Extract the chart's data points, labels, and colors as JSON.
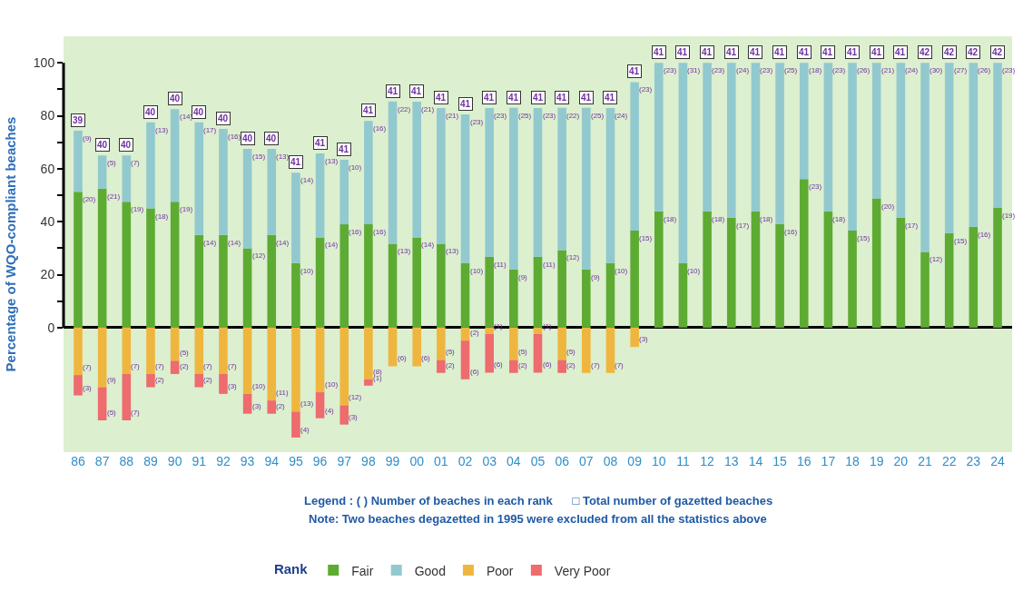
{
  "chart_data": {
    "type": "bar",
    "stacked": true,
    "categories": [
      "86",
      "87",
      "88",
      "89",
      "90",
      "91",
      "92",
      "93",
      "94",
      "95",
      "96",
      "97",
      "98",
      "99",
      "00",
      "01",
      "02",
      "03",
      "04",
      "05",
      "06",
      "07",
      "08",
      "09",
      "10",
      "11",
      "12",
      "13",
      "14",
      "15",
      "16",
      "17",
      "18",
      "19",
      "20",
      "21",
      "22",
      "23",
      "24"
    ],
    "ylabel": "Percentage of WQO-compliant beaches",
    "ylim": [
      -47,
      110
    ],
    "yticks": [
      0,
      {
        "value": 10,
        "label": null
      },
      20,
      {
        "value": 30,
        "label": null
      },
      40,
      {
        "value": 50,
        "label": null
      },
      60,
      {
        "value": 70,
        "label": null
      },
      80,
      {
        "value": 90,
        "label": null
      },
      100
    ],
    "legend": "bottom",
    "legend_title": "Rank",
    "series": [
      {
        "name": "Fair",
        "color": "#5dab32",
        "values": [
          51.3,
          52.5,
          47.5,
          45,
          47.5,
          35,
          35,
          30,
          35,
          24.4,
          34.1,
          39.0,
          39.0,
          31.7,
          34.1,
          31.7,
          24.4,
          26.8,
          22.0,
          26.8,
          29.3,
          22.0,
          24.4,
          36.6,
          43.9,
          24.4,
          43.9,
          41.5,
          43.9,
          39.0,
          56.1,
          43.9,
          36.6,
          48.8,
          41.5,
          28.6,
          35.7,
          38.1,
          45.2
        ]
      },
      {
        "name": "Good",
        "color": "#92c9cf",
        "values": [
          23.1,
          12.5,
          17.5,
          32.5,
          35,
          42.5,
          40,
          37.5,
          32.5,
          34.1,
          31.7,
          24.4,
          39.0,
          53.7,
          51.2,
          51.2,
          56.1,
          56.1,
          61.0,
          56.1,
          53.7,
          61.0,
          58.5,
          56.1,
          56.1,
          75.6,
          56.1,
          58.5,
          56.1,
          61.0,
          43.9,
          56.1,
          63.4,
          51.2,
          58.5,
          71.4,
          64.3,
          61.9,
          54.8
        ]
      },
      {
        "name": "Poor",
        "color": "#efb63f",
        "values": [
          -17.9,
          -22.5,
          -17.5,
          -17.5,
          -12.5,
          -17.5,
          -17.5,
          -25,
          -27.5,
          -31.7,
          -24.4,
          -29.3,
          -19.5,
          -14.6,
          -14.6,
          -12.2,
          -4.9,
          -2.4,
          -12.2,
          -2.4,
          -12.2,
          -17.1,
          -17.1,
          -7.3,
          null,
          null,
          null,
          null,
          null,
          null,
          null,
          null,
          null,
          null,
          null,
          null,
          null,
          null,
          null
        ]
      },
      {
        "name": "Very Poor",
        "color": "#ee6b6e",
        "values": [
          -7.7,
          -12.5,
          -17.5,
          -5,
          -5,
          -5,
          -7.5,
          -7.5,
          -5,
          -9.8,
          -9.8,
          -7.3,
          -2.4,
          null,
          null,
          -4.9,
          -14.6,
          -14.6,
          -4.9,
          -14.6,
          -4.9,
          null,
          null,
          null,
          null,
          null,
          null,
          null,
          null,
          null,
          null,
          null,
          null,
          null,
          null,
          null,
          null,
          null,
          null
        ]
      }
    ],
    "annotations": [
      "Legend : ( ) Number of beaches in each rank      □ Total number of gazetted beaches",
      "Note: Two beaches degazetted in 1995 were excluded from all the statistics above",
      {
        "text": "39",
        "x": "86",
        "y": 74.4
      },
      {
        "text": "40",
        "x": "87",
        "y": 65
      },
      {
        "text": "40",
        "x": "88",
        "y": 65
      },
      {
        "text": "40",
        "x": "89",
        "y": 77.5
      },
      {
        "text": "40",
        "x": "90",
        "y": 82.5
      },
      {
        "text": "40",
        "x": "91",
        "y": 77.5
      },
      {
        "text": "40",
        "x": "92",
        "y": 75
      },
      {
        "text": "40",
        "x": "93",
        "y": 67.5
      },
      {
        "text": "40",
        "x": "94",
        "y": 67.5
      },
      {
        "text": "41",
        "x": "95",
        "y": 58.5
      },
      {
        "text": "41",
        "x": "96",
        "y": 65.8
      },
      {
        "text": "41",
        "x": "97",
        "y": 63.4
      },
      {
        "text": "41",
        "x": "98",
        "y": 78
      },
      {
        "text": "41",
        "x": "99",
        "y": 85.4
      },
      {
        "text": "41",
        "x": "00",
        "y": 85.3
      },
      {
        "text": "41",
        "x": "01",
        "y": 82.9
      },
      {
        "text": "41",
        "x": "02",
        "y": 80.5
      },
      {
        "text": "41",
        "x": "03",
        "y": 82.9
      },
      {
        "text": "41",
        "x": "04",
        "y": 83
      },
      {
        "text": "41",
        "x": "05",
        "y": 82.9
      },
      {
        "text": "41",
        "x": "06",
        "y": 83
      },
      {
        "text": "41",
        "x": "07",
        "y": 83
      },
      {
        "text": "41",
        "x": "08",
        "y": 82.9
      },
      {
        "text": "41",
        "x": "09",
        "y": 92.7
      },
      {
        "text": "41",
        "x": "10",
        "y": 100
      },
      {
        "text": "41",
        "x": "11",
        "y": 100
      },
      {
        "text": "41",
        "x": "12",
        "y": 100
      },
      {
        "text": "41",
        "x": "13",
        "y": 100
      },
      {
        "text": "41",
        "x": "14",
        "y": 100
      },
      {
        "text": "41",
        "x": "15",
        "y": 100
      },
      {
        "text": "41",
        "x": "16",
        "y": 100
      },
      {
        "text": "41",
        "x": "17",
        "y": 100
      },
      {
        "text": "41",
        "x": "18",
        "y": 100
      },
      {
        "text": "41",
        "x": "19",
        "y": 100
      },
      {
        "text": "41",
        "x": "20",
        "y": 100
      },
      {
        "text": "42",
        "x": "21",
        "y": 100
      },
      {
        "text": "42",
        "x": "22",
        "y": 100
      },
      {
        "text": "42",
        "x": "23",
        "y": 100
      },
      {
        "text": "42",
        "x": "24",
        "y": 100
      },
      {
        "text": "(20)",
        "x": "86",
        "y": 51.3
      },
      {
        "text": "(21)",
        "x": "87",
        "y": 52.5
      },
      {
        "text": "(19)",
        "x": "88",
        "y": 47.5
      },
      {
        "text": "(18)",
        "x": "89",
        "y": 45
      },
      {
        "text": "(19)",
        "x": "90",
        "y": 47.5
      },
      {
        "text": "(14)",
        "x": "91",
        "y": 35
      },
      {
        "text": "(14)",
        "x": "92",
        "y": 35
      },
      {
        "text": "(12)",
        "x": "93",
        "y": 30
      },
      {
        "text": "(14)",
        "x": "94",
        "y": 35
      },
      {
        "text": "(10)",
        "x": "95",
        "y": 24.4
      },
      {
        "text": "(14)",
        "x": "96",
        "y": 34.1
      },
      {
        "text": "(16)",
        "x": "97",
        "y": 39.0
      },
      {
        "text": "(16)",
        "x": "98",
        "y": 39.0
      },
      {
        "text": "(13)",
        "x": "99",
        "y": 31.7
      },
      {
        "text": "(14)",
        "x": "00",
        "y": 34.1
      },
      {
        "text": "(13)",
        "x": "01",
        "y": 31.7
      },
      {
        "text": "(10)",
        "x": "02",
        "y": 24.4
      },
      {
        "text": "(11)",
        "x": "03",
        "y": 26.8
      },
      {
        "text": "(9)",
        "x": "04",
        "y": 22.0
      },
      {
        "text": "(11)",
        "x": "05",
        "y": 26.8
      },
      {
        "text": "(12)",
        "x": "06",
        "y": 29.3
      },
      {
        "text": "(9)",
        "x": "07",
        "y": 22.0
      },
      {
        "text": "(10)",
        "x": "08",
        "y": 24.4
      },
      {
        "text": "(15)",
        "x": "09",
        "y": 36.6
      },
      {
        "text": "(18)",
        "x": "10",
        "y": 43.9
      },
      {
        "text": "(10)",
        "x": "11",
        "y": 24.4
      },
      {
        "text": "(18)",
        "x": "12",
        "y": 43.9
      },
      {
        "text": "(17)",
        "x": "13",
        "y": 41.5
      },
      {
        "text": "(18)",
        "x": "14",
        "y": 43.9
      },
      {
        "text": "(16)",
        "x": "15",
        "y": 39.0
      },
      {
        "text": "(23)",
        "x": "16",
        "y": 56.1
      },
      {
        "text": "(18)",
        "x": "17",
        "y": 43.9
      },
      {
        "text": "(15)",
        "x": "18",
        "y": 36.6
      },
      {
        "text": "(20)",
        "x": "19",
        "y": 48.8
      },
      {
        "text": "(17)",
        "x": "20",
        "y": 41.5
      },
      {
        "text": "(12)",
        "x": "21",
        "y": 28.6
      },
      {
        "text": "(15)",
        "x": "22",
        "y": 35.7
      },
      {
        "text": "(16)",
        "x": "23",
        "y": 38.1
      },
      {
        "text": "(19)",
        "x": "24",
        "y": 45.2
      },
      {
        "text": "(9)",
        "x": "86",
        "y": 74.4
      },
      {
        "text": "(5)",
        "x": "87",
        "y": 65
      },
      {
        "text": "(7)",
        "x": "88",
        "y": 65
      },
      {
        "text": "(13)",
        "x": "89",
        "y": 77.5
      },
      {
        "text": "(14)",
        "x": "90",
        "y": 82.5
      },
      {
        "text": "(17)",
        "x": "91",
        "y": 77.5
      },
      {
        "text": "(16)",
        "x": "92",
        "y": 75
      },
      {
        "text": "(15)",
        "x": "93",
        "y": 67.5
      },
      {
        "text": "(13)",
        "x": "94",
        "y": 67.5
      },
      {
        "text": "(14)",
        "x": "95",
        "y": 58.5
      },
      {
        "text": "(13)",
        "x": "96",
        "y": 65.8
      },
      {
        "text": "(10)",
        "x": "97",
        "y": 63.4
      },
      {
        "text": "(16)",
        "x": "98",
        "y": 78
      },
      {
        "text": "(22)",
        "x": "99",
        "y": 85.4
      },
      {
        "text": "(21)",
        "x": "00",
        "y": 85.3
      },
      {
        "text": "(21)",
        "x": "01",
        "y": 82.9
      },
      {
        "text": "(23)",
        "x": "02",
        "y": 80.5
      },
      {
        "text": "(23)",
        "x": "03",
        "y": 82.9
      },
      {
        "text": "(25)",
        "x": "04",
        "y": 83
      },
      {
        "text": "(23)",
        "x": "05",
        "y": 82.9
      },
      {
        "text": "(22)",
        "x": "06",
        "y": 83
      },
      {
        "text": "(25)",
        "x": "07",
        "y": 83
      },
      {
        "text": "(24)",
        "x": "08",
        "y": 82.9
      },
      {
        "text": "(23)",
        "x": "09",
        "y": 92.7
      },
      {
        "text": "(23)",
        "x": "10",
        "y": 100
      },
      {
        "text": "(31)",
        "x": "11",
        "y": 100
      },
      {
        "text": "(23)",
        "x": "12",
        "y": 100
      },
      {
        "text": "(24)",
        "x": "13",
        "y": 100
      },
      {
        "text": "(23)",
        "x": "14",
        "y": 100
      },
      {
        "text": "(25)",
        "x": "15",
        "y": 100
      },
      {
        "text": "(18)",
        "x": "16",
        "y": 100
      },
      {
        "text": "(23)",
        "x": "17",
        "y": 100
      },
      {
        "text": "(26)",
        "x": "18",
        "y": 100
      },
      {
        "text": "(21)",
        "x": "19",
        "y": 100
      },
      {
        "text": "(24)",
        "x": "20",
        "y": 100
      },
      {
        "text": "(30)",
        "x": "21",
        "y": 100
      },
      {
        "text": "(27)",
        "x": "22",
        "y": 100
      },
      {
        "text": "(26)",
        "x": "23",
        "y": 100
      },
      {
        "text": "(23)",
        "x": "24",
        "y": 100
      },
      {
        "text": "(7)",
        "x": "86",
        "y": -17.9
      },
      {
        "text": "(9)",
        "x": "87",
        "y": -22.5
      },
      {
        "text": "(7)",
        "x": "88",
        "y": -17.5
      },
      {
        "text": "(7)",
        "x": "89",
        "y": -17.5
      },
      {
        "text": "(5)",
        "x": "90",
        "y": -12.5
      },
      {
        "text": "(7)",
        "x": "91",
        "y": -17.5
      },
      {
        "text": "(7)",
        "x": "92",
        "y": -17.5
      },
      {
        "text": "(10)",
        "x": "93",
        "y": -25
      },
      {
        "text": "(11)",
        "x": "94",
        "y": -27.5
      },
      {
        "text": "(13)",
        "x": "95",
        "y": -31.7
      },
      {
        "text": "(10)",
        "x": "96",
        "y": -24.4
      },
      {
        "text": "(12)",
        "x": "97",
        "y": -29.3
      },
      {
        "text": "(8)",
        "x": "98",
        "y": -19.5
      },
      {
        "text": "(6)",
        "x": "99",
        "y": -14.6
      },
      {
        "text": "(6)",
        "x": "00",
        "y": -14.6
      },
      {
        "text": "(5)",
        "x": "01",
        "y": -12.2
      },
      {
        "text": "(2)",
        "x": "02",
        "y": -4.9
      },
      {
        "text": "(1)",
        "x": "03",
        "y": -2.4
      },
      {
        "text": "(5)",
        "x": "04",
        "y": -12.2
      },
      {
        "text": "(1)",
        "x": "05",
        "y": -2.4
      },
      {
        "text": "(5)",
        "x": "06",
        "y": -12.2
      },
      {
        "text": "(7)",
        "x": "07",
        "y": -17.1
      },
      {
        "text": "(7)",
        "x": "08",
        "y": -17.1
      },
      {
        "text": "(3)",
        "x": "09",
        "y": -7.3
      },
      {
        "text": "(3)",
        "x": "86",
        "y": -25.6
      },
      {
        "text": "(5)",
        "x": "87",
        "y": -35
      },
      {
        "text": "(7)",
        "x": "88",
        "y": -35
      },
      {
        "text": "(2)",
        "x": "89",
        "y": -22.5
      },
      {
        "text": "(2)",
        "x": "90",
        "y": -17.5
      },
      {
        "text": "(2)",
        "x": "91",
        "y": -22.5
      },
      {
        "text": "(3)",
        "x": "92",
        "y": -25
      },
      {
        "text": "(3)",
        "x": "93",
        "y": -32.5
      },
      {
        "text": "(2)",
        "x": "94",
        "y": -32.5
      },
      {
        "text": "(4)",
        "x": "95",
        "y": -41.5
      },
      {
        "text": "(4)",
        "x": "96",
        "y": -34.2
      },
      {
        "text": "(3)",
        "x": "97",
        "y": -36.6
      },
      {
        "text": "(1)",
        "x": "98",
        "y": -21.9
      },
      {
        "text": "(2)",
        "x": "01",
        "y": -17.1
      },
      {
        "text": "(6)",
        "x": "02",
        "y": -19.5
      },
      {
        "text": "(6)",
        "x": "03",
        "y": -17
      },
      {
        "text": "(2)",
        "x": "04",
        "y": -17.1
      },
      {
        "text": "(6)",
        "x": "05",
        "y": -17
      },
      {
        "text": "(2)",
        "x": "06",
        "y": -17.1
      }
    ]
  }
}
